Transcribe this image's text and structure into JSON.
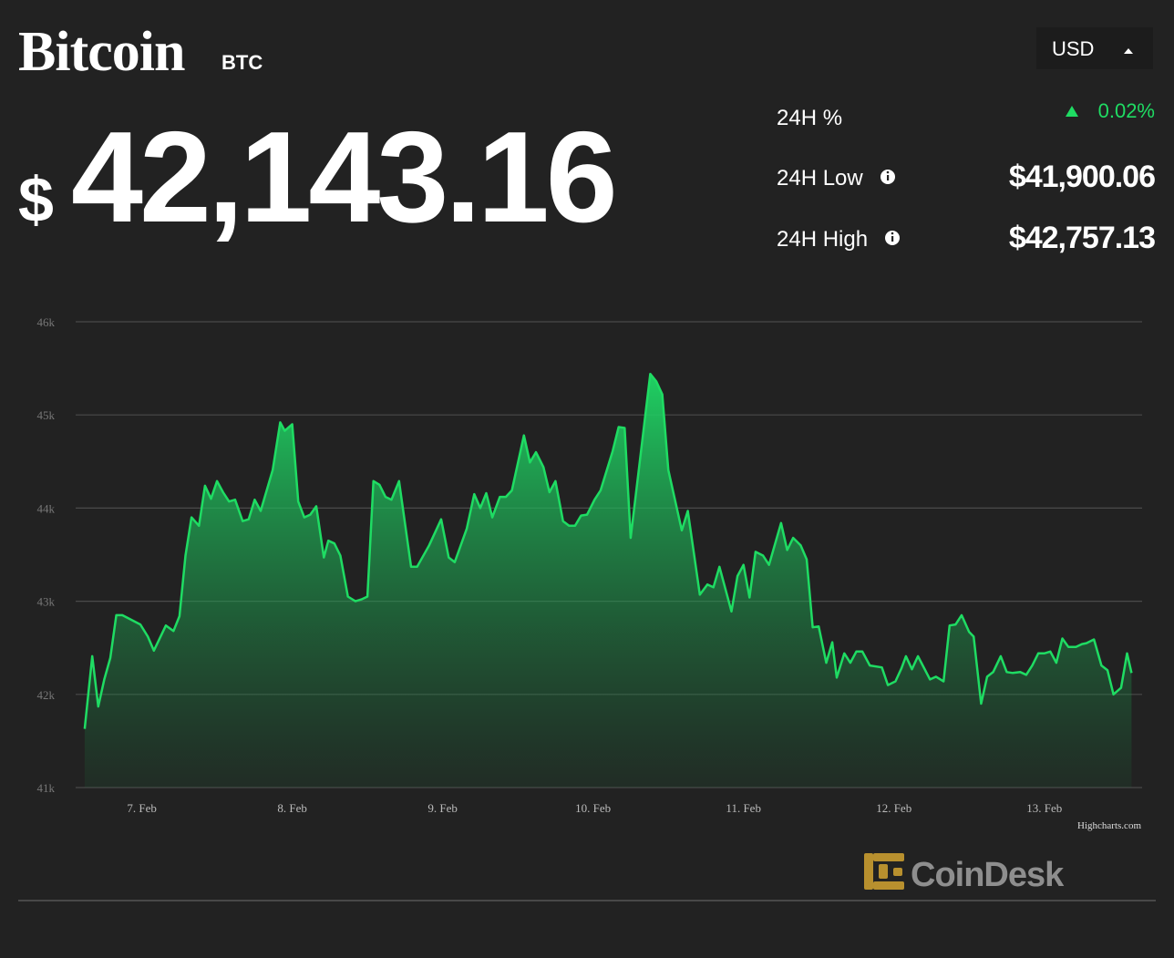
{
  "header": {
    "title": "Bitcoin",
    "symbol": "BTC",
    "currency": "USD",
    "price_symbol": "$",
    "price_amount": "42,143.16"
  },
  "stats": [
    {
      "label": "24H %",
      "value": "0.02%"
    },
    {
      "label": "24H Low",
      "value": "$41,900.06"
    },
    {
      "label": "24H High",
      "value": "$42,757.13"
    }
  ],
  "chart_data": {
    "type": "area",
    "color": "#1fdc63",
    "grid": true,
    "credits": "Highcharts.com",
    "xlim": [
      6.56,
      13.65
    ],
    "ylim": [
      41000,
      46000
    ],
    "xticks": [
      {
        "value": 7,
        "label": "7. Feb"
      },
      {
        "value": 8,
        "label": "8. Feb"
      },
      {
        "value": 9,
        "label": "9. Feb"
      },
      {
        "value": 10,
        "label": "10. Feb"
      },
      {
        "value": 11,
        "label": "11. Feb"
      },
      {
        "value": 12,
        "label": "12. Feb"
      },
      {
        "value": 13,
        "label": "13. Feb"
      }
    ],
    "yticks": [
      {
        "value": 41000,
        "label": "41k"
      },
      {
        "value": 42000,
        "label": "42k"
      },
      {
        "value": 43000,
        "label": "43k"
      },
      {
        "value": 44000,
        "label": "44k"
      },
      {
        "value": 45000,
        "label": "45k"
      },
      {
        "value": 46000,
        "label": "46k"
      }
    ],
    "x": [
      6.62,
      6.67,
      6.71,
      6.75,
      6.79,
      6.83,
      6.87,
      6.99,
      7.04,
      7.08,
      7.16,
      7.21,
      7.25,
      7.29,
      7.33,
      7.38,
      7.42,
      7.46,
      7.5,
      7.54,
      7.58,
      7.62,
      7.67,
      7.71,
      7.75,
      7.79,
      7.87,
      7.92,
      7.95,
      8.0,
      8.04,
      8.08,
      8.12,
      8.16,
      8.21,
      8.24,
      8.28,
      8.32,
      8.37,
      8.42,
      8.46,
      8.5,
      8.54,
      8.58,
      8.62,
      8.66,
      8.71,
      8.79,
      8.83,
      8.91,
      8.99,
      9.04,
      9.08,
      9.16,
      9.21,
      9.25,
      9.29,
      9.33,
      9.38,
      9.42,
      9.46,
      9.54,
      9.58,
      9.62,
      9.67,
      9.71,
      9.75,
      9.8,
      9.84,
      9.88,
      9.92,
      9.96,
      10.01,
      10.05,
      10.13,
      10.17,
      10.21,
      10.25,
      10.38,
      10.42,
      10.46,
      10.5,
      10.54,
      10.59,
      10.63,
      10.71,
      10.76,
      10.8,
      10.84,
      10.92,
      10.96,
      11.0,
      11.04,
      11.08,
      11.13,
      11.17,
      11.25,
      11.29,
      11.33,
      11.38,
      11.42,
      11.46,
      11.5,
      11.55,
      11.59,
      11.62,
      11.67,
      11.71,
      11.75,
      11.79,
      11.84,
      11.92,
      11.96,
      12.01,
      12.05,
      12.08,
      12.12,
      12.16,
      12.24,
      12.28,
      12.33,
      12.37,
      12.41,
      12.45,
      12.5,
      12.53,
      12.58,
      12.62,
      12.66,
      12.71,
      12.75,
      12.79,
      12.84,
      12.88,
      12.92,
      12.96,
      13.0,
      13.04,
      13.08,
      13.12,
      13.16,
      13.21,
      13.25,
      13.28,
      13.33,
      13.38,
      13.42,
      13.46,
      13.51,
      13.55,
      13.58
    ],
    "values": [
      41630,
      42410,
      41870,
      42160,
      42390,
      42850,
      42850,
      42750,
      42620,
      42470,
      42740,
      42680,
      42840,
      43490,
      43900,
      43810,
      44240,
      44100,
      44290,
      44170,
      44070,
      44090,
      43860,
      43880,
      44090,
      43970,
      44410,
      44920,
      44830,
      44900,
      44070,
      43900,
      43930,
      44020,
      43470,
      43650,
      43620,
      43490,
      43050,
      43000,
      43020,
      43050,
      44290,
      44250,
      44120,
      44090,
      44290,
      43370,
      43370,
      43600,
      43880,
      43470,
      43420,
      43780,
      44150,
      44000,
      44160,
      43900,
      44120,
      44120,
      44190,
      44780,
      44490,
      44600,
      44440,
      44170,
      44290,
      43860,
      43810,
      43810,
      43920,
      43930,
      44090,
      44190,
      44610,
      44870,
      44860,
      43680,
      45440,
      45360,
      45220,
      44410,
      44120,
      43760,
      43970,
      43070,
      43180,
      43150,
      43370,
      42890,
      43270,
      43390,
      43040,
      43530,
      43490,
      43390,
      43840,
      43550,
      43680,
      43600,
      43450,
      42720,
      42730,
      42340,
      42560,
      42180,
      42440,
      42340,
      42460,
      42460,
      42310,
      42290,
      42100,
      42140,
      42280,
      42410,
      42270,
      42410,
      42160,
      42190,
      42140,
      42740,
      42750,
      42850,
      42670,
      42620,
      41900,
      42190,
      42240,
      42410,
      42240,
      42230,
      42240,
      42210,
      42310,
      42440,
      42440,
      42460,
      42340,
      42600,
      42510,
      42510,
      42540,
      42550,
      42590,
      42310,
      42260,
      42000,
      42070,
      42440,
      42230
    ]
  },
  "branding": {
    "logo": "CoinDesk"
  }
}
